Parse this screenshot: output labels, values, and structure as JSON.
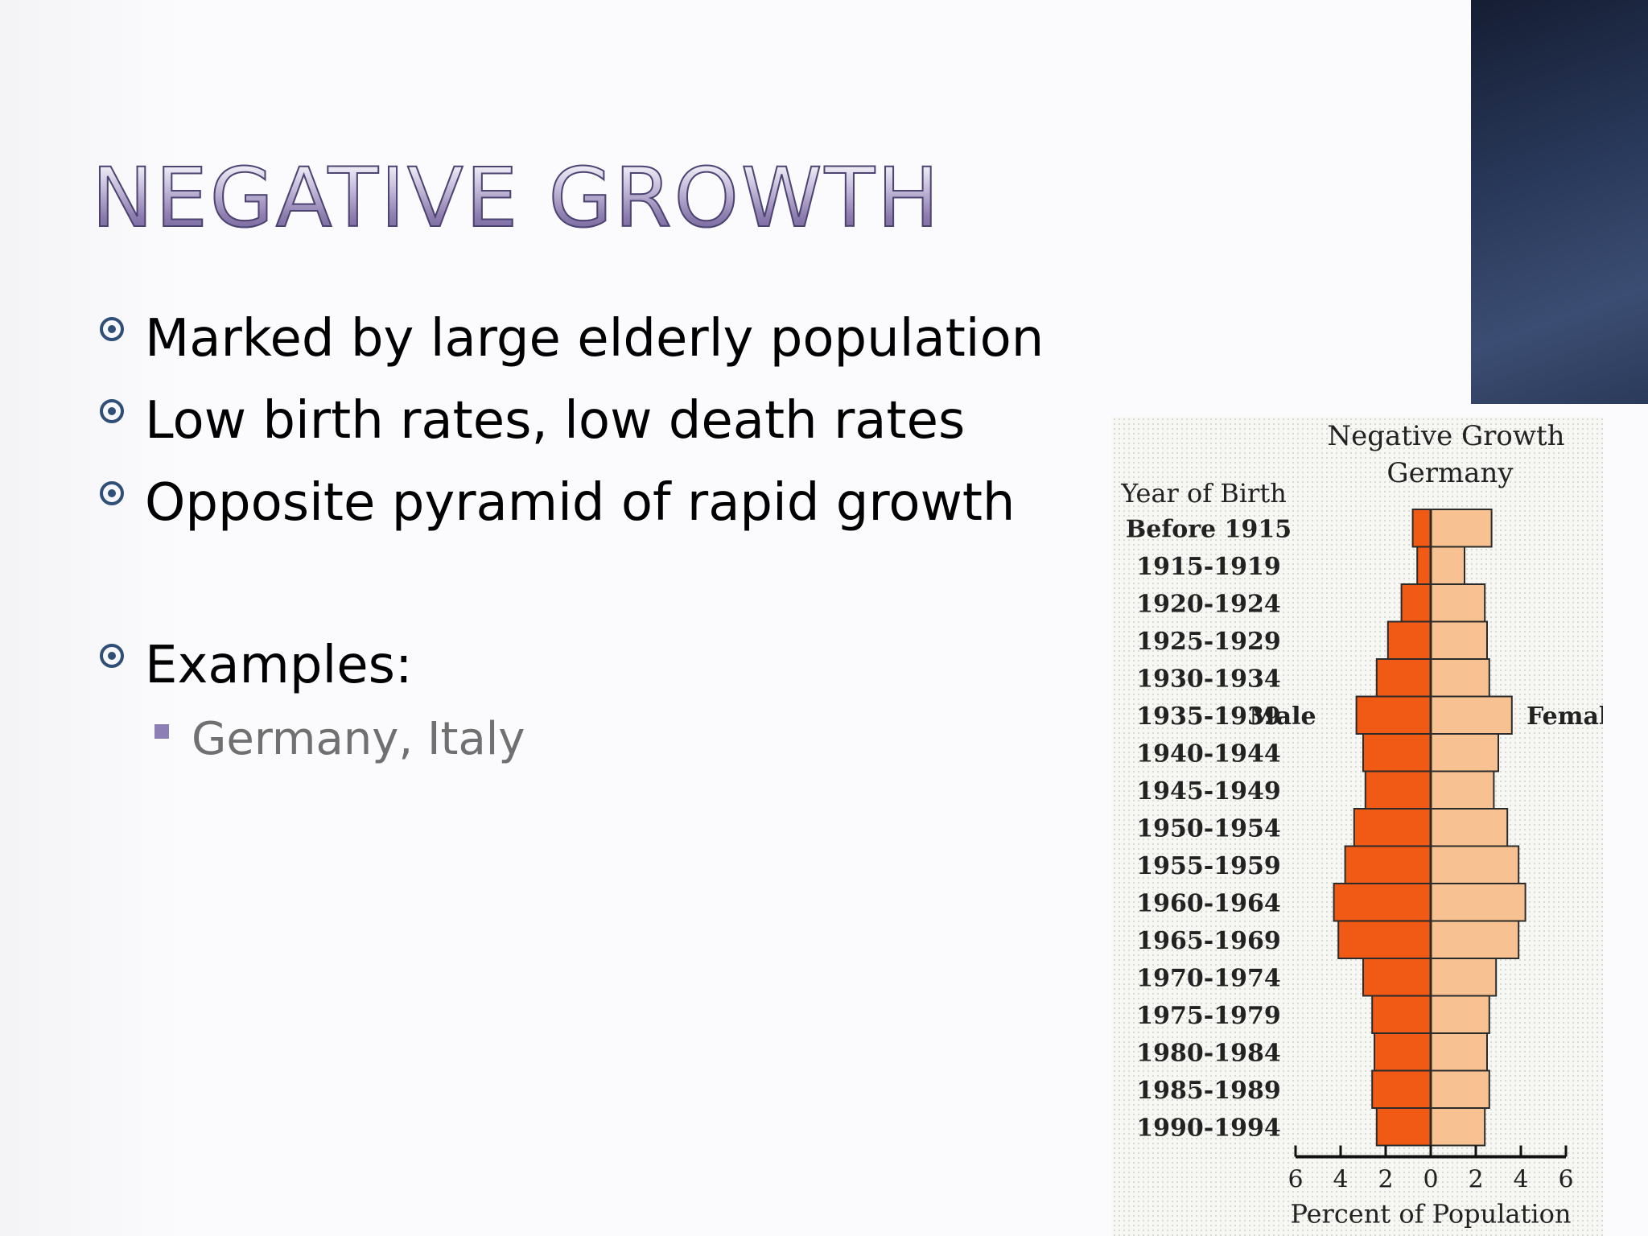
{
  "slide": {
    "title": "NEGATIVE GROWTH",
    "bullets": [
      "Marked by large elderly population",
      "Low birth rates, low death rates",
      "Opposite pyramid of rapid growth"
    ],
    "examples_label": "Examples:",
    "examples_sub": "Germany, Italy"
  },
  "colors": {
    "male": "#f05a14",
    "female": "#f8c191",
    "bullet_marker": "#2f4f78",
    "sub_marker": "#8d7fb5"
  },
  "chart_data": {
    "type": "bar",
    "orientation": "horizontal-population-pyramid",
    "title": "Negative Growth",
    "subtitle": "Germany",
    "ylabel": "Year of Birth",
    "xlabel": "Percent of Population",
    "male_label": "Male",
    "female_label": "Female",
    "xticks": [
      "6",
      "4",
      "2",
      "0",
      "2",
      "4",
      "6"
    ],
    "xlim": [
      -6,
      6
    ],
    "categories": [
      "Before 1915",
      "1915-1919",
      "1920-1924",
      "1925-1929",
      "1930-1934",
      "1935-1939",
      "1940-1944",
      "1945-1949",
      "1950-1954",
      "1955-1959",
      "1960-1964",
      "1965-1969",
      "1970-1974",
      "1975-1979",
      "1980-1984",
      "1985-1989",
      "1990-1994"
    ],
    "series": [
      {
        "name": "Male",
        "values": [
          0.8,
          0.6,
          1.3,
          1.9,
          2.4,
          3.3,
          3.0,
          2.9,
          3.4,
          3.8,
          4.3,
          4.1,
          3.0,
          2.6,
          2.5,
          2.6,
          2.4
        ]
      },
      {
        "name": "Female",
        "values": [
          2.7,
          1.5,
          2.4,
          2.5,
          2.6,
          3.6,
          3.0,
          2.8,
          3.4,
          3.9,
          4.2,
          3.9,
          2.9,
          2.6,
          2.5,
          2.6,
          2.4
        ]
      }
    ]
  }
}
